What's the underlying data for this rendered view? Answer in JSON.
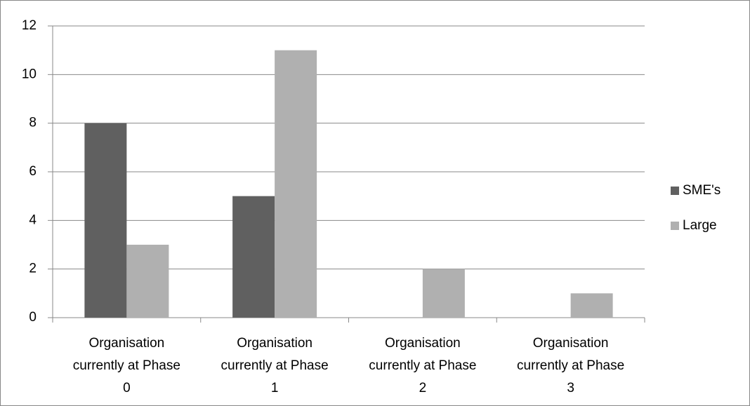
{
  "chart_data": {
    "type": "bar",
    "categories": [
      "Organisation currently at Phase 0",
      "Organisation currently at Phase 1",
      "Organisation currently at Phase 2",
      "Organisation currently at Phase 3"
    ],
    "series": [
      {
        "name": "SME's",
        "color": "#606060",
        "values": [
          8,
          5,
          0,
          0
        ]
      },
      {
        "name": "Large",
        "color": "#b0b0b0",
        "values": [
          3,
          11,
          2,
          1
        ]
      }
    ],
    "ylim": [
      0,
      12
    ],
    "yticks": [
      0,
      2,
      4,
      6,
      8,
      10,
      12
    ],
    "grid": true,
    "legend": "right"
  }
}
